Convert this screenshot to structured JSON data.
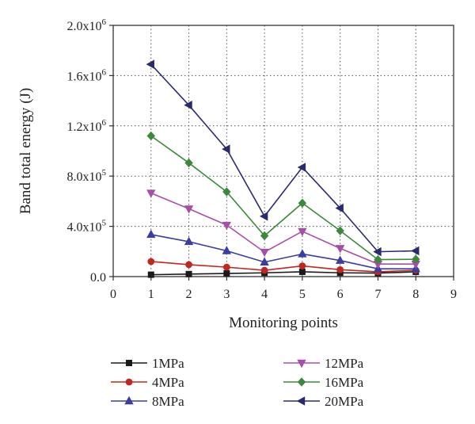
{
  "chart_data": {
    "type": "line",
    "xlabel": "Monitoring points",
    "ylabel": "Band total energy (J)",
    "xlim": [
      0,
      9
    ],
    "ylim": [
      0,
      2000000
    ],
    "x_ticks": [
      0,
      1,
      2,
      3,
      4,
      5,
      6,
      7,
      8,
      9
    ],
    "y_ticks": [
      {
        "value": 0,
        "mantissa": "0.0",
        "exp": ""
      },
      {
        "value": 400000,
        "mantissa": "4.0x10",
        "exp": "5"
      },
      {
        "value": 800000,
        "mantissa": "8.0x10",
        "exp": "5"
      },
      {
        "value": 1200000,
        "mantissa": "1.2x10",
        "exp": "6"
      },
      {
        "value": 1600000,
        "mantissa": "1.6x10",
        "exp": "6"
      },
      {
        "value": 2000000,
        "mantissa": "2.0x10",
        "exp": "6"
      }
    ],
    "x": [
      1,
      2,
      3,
      4,
      5,
      6,
      7,
      8
    ],
    "grid": true,
    "legend_position": "bottom",
    "series": [
      {
        "name": "1MPa",
        "color": "#1a1a1a",
        "marker": "square",
        "values": [
          15000,
          20000,
          25000,
          30000,
          38000,
          30000,
          28000,
          38000
        ]
      },
      {
        "name": "4MPa",
        "color": "#c0281f",
        "marker": "circle",
        "values": [
          120000,
          95000,
          75000,
          50000,
          85000,
          55000,
          38000,
          50000
        ]
      },
      {
        "name": "8MPa",
        "color": "#3a3ea0",
        "marker": "triangle-up",
        "values": [
          335000,
          278000,
          205000,
          115000,
          180000,
          128000,
          62000,
          62000
        ]
      },
      {
        "name": "12MPa",
        "color": "#a84ea8",
        "marker": "triangle-down",
        "values": [
          665000,
          540000,
          410000,
          195000,
          360000,
          225000,
          100000,
          100000
        ]
      },
      {
        "name": "16MPa",
        "color": "#3a8a3a",
        "marker": "diamond",
        "values": [
          1120000,
          905000,
          675000,
          325000,
          585000,
          365000,
          135000,
          138000
        ]
      },
      {
        "name": "20MPa",
        "color": "#2a2a6e",
        "marker": "left-triangle",
        "values": [
          1690000,
          1365000,
          1015000,
          480000,
          870000,
          545000,
          198000,
          205000
        ]
      }
    ]
  }
}
